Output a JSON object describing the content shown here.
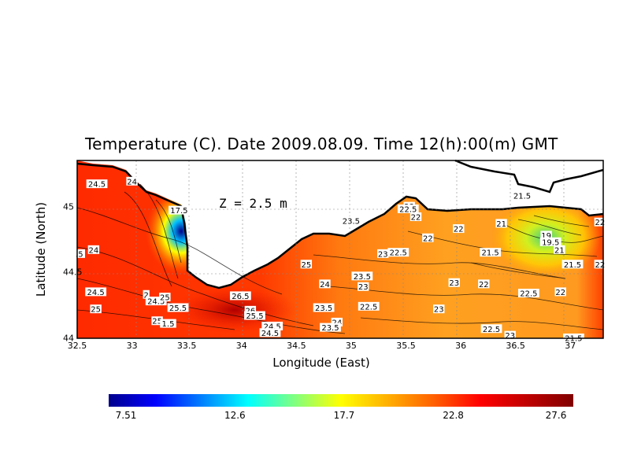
{
  "title": "Temperature (C). Date 2009.08.09. Time 12(h):00(m) GMT",
  "depth_label": "Z  =  2.5  m",
  "xlabel": "Longitude (East)",
  "ylabel": "Latitude (North)",
  "colorbar": {
    "labels": [
      "7.51",
      "12.6",
      "17.7",
      "22.8",
      "27.6"
    ],
    "min": 7.51,
    "max": 27.6,
    "colors": [
      "#00008b",
      "#0000ff",
      "#0080ff",
      "#00ffff",
      "#80ff80",
      "#ffff00",
      "#ffb000",
      "#ff6000",
      "#ff0000",
      "#c00000",
      "#800000"
    ]
  },
  "chart_data": {
    "type": "heatmap",
    "title": "Temperature (C). Date 2009.08.09. Time 12(h):00(m) GMT",
    "xlabel": "Longitude (East)",
    "ylabel": "Latitude (North)",
    "xlim": [
      32.5,
      37.3
    ],
    "ylim": [
      44.0,
      45.35
    ],
    "x_ticks": [
      "32.5",
      "33",
      "33.5",
      "34",
      "34.5",
      "35",
      "35.5",
      "36",
      "36.5",
      "37"
    ],
    "y_ticks": [
      "44",
      "44.5",
      "45"
    ],
    "contour_labels": [
      {
        "lon": 32.68,
        "lat": 45.17,
        "text": "24.5"
      },
      {
        "lon": 33.0,
        "lat": 45.19,
        "text": "24"
      },
      {
        "lon": 33.43,
        "lat": 44.97,
        "text": "17.5"
      },
      {
        "lon": 32.52,
        "lat": 44.64,
        "text": ".5"
      },
      {
        "lon": 32.65,
        "lat": 44.67,
        "text": "24"
      },
      {
        "lon": 32.67,
        "lat": 44.35,
        "text": "24.5"
      },
      {
        "lon": 32.67,
        "lat": 44.22,
        "text": "25"
      },
      {
        "lon": 33.13,
        "lat": 44.33,
        "text": "2"
      },
      {
        "lon": 33.22,
        "lat": 44.28,
        "text": "24.5"
      },
      {
        "lon": 33.3,
        "lat": 44.31,
        "text": "25"
      },
      {
        "lon": 33.42,
        "lat": 44.23,
        "text": "25.5"
      },
      {
        "lon": 33.23,
        "lat": 44.13,
        "text": "25"
      },
      {
        "lon": 33.33,
        "lat": 44.11,
        "text": "1.5"
      },
      {
        "lon": 33.99,
        "lat": 44.32,
        "text": "26.5"
      },
      {
        "lon": 34.08,
        "lat": 44.21,
        "text": "26"
      },
      {
        "lon": 34.12,
        "lat": 44.17,
        "text": "25.5"
      },
      {
        "lon": 34.59,
        "lat": 44.56,
        "text": "25"
      },
      {
        "lon": 34.76,
        "lat": 44.41,
        "text": "24"
      },
      {
        "lon": 34.75,
        "lat": 44.23,
        "text": "23.5"
      },
      {
        "lon": 34.87,
        "lat": 44.12,
        "text": "24"
      },
      {
        "lon": 34.81,
        "lat": 44.08,
        "text": "23.5"
      },
      {
        "lon": 34.28,
        "lat": 44.09,
        "text": "24.5"
      },
      {
        "lon": 34.26,
        "lat": 44.04,
        "text": "24.5"
      },
      {
        "lon": 35.0,
        "lat": 44.89,
        "text": "23.5"
      },
      {
        "lon": 35.29,
        "lat": 44.64,
        "text": "23"
      },
      {
        "lon": 35.43,
        "lat": 44.65,
        "text": "22.5"
      },
      {
        "lon": 35.1,
        "lat": 44.47,
        "text": "23.5"
      },
      {
        "lon": 35.11,
        "lat": 44.39,
        "text": "23"
      },
      {
        "lon": 35.16,
        "lat": 44.24,
        "text": "22.5"
      },
      {
        "lon": 35.53,
        "lat": 45.0,
        "text": "23"
      },
      {
        "lon": 35.52,
        "lat": 44.98,
        "text": "22.5"
      },
      {
        "lon": 35.59,
        "lat": 44.92,
        "text": "22"
      },
      {
        "lon": 35.7,
        "lat": 44.76,
        "text": "22"
      },
      {
        "lon": 35.98,
        "lat": 44.83,
        "text": "22"
      },
      {
        "lon": 35.94,
        "lat": 44.42,
        "text": "23"
      },
      {
        "lon": 35.8,
        "lat": 44.22,
        "text": "23"
      },
      {
        "lon": 36.21,
        "lat": 44.41,
        "text": "22"
      },
      {
        "lon": 36.27,
        "lat": 44.65,
        "text": "21.5"
      },
      {
        "lon": 36.56,
        "lat": 45.08,
        "text": "21.5"
      },
      {
        "lon": 36.37,
        "lat": 44.87,
        "text": "21"
      },
      {
        "lon": 36.78,
        "lat": 44.78,
        "text": "19"
      },
      {
        "lon": 36.82,
        "lat": 44.73,
        "text": "19.5"
      },
      {
        "lon": 36.9,
        "lat": 44.67,
        "text": "21"
      },
      {
        "lon": 37.02,
        "lat": 44.56,
        "text": "21.5"
      },
      {
        "lon": 37.27,
        "lat": 44.56,
        "text": "22"
      },
      {
        "lon": 37.27,
        "lat": 44.88,
        "text": "22"
      },
      {
        "lon": 36.62,
        "lat": 44.34,
        "text": "22.5"
      },
      {
        "lon": 36.91,
        "lat": 44.35,
        "text": "22"
      },
      {
        "lon": 36.28,
        "lat": 44.07,
        "text": "22.5"
      },
      {
        "lon": 36.45,
        "lat": 44.02,
        "text": "23"
      },
      {
        "lon": 37.03,
        "lat": 44.0,
        "text": "21.5"
      }
    ]
  }
}
